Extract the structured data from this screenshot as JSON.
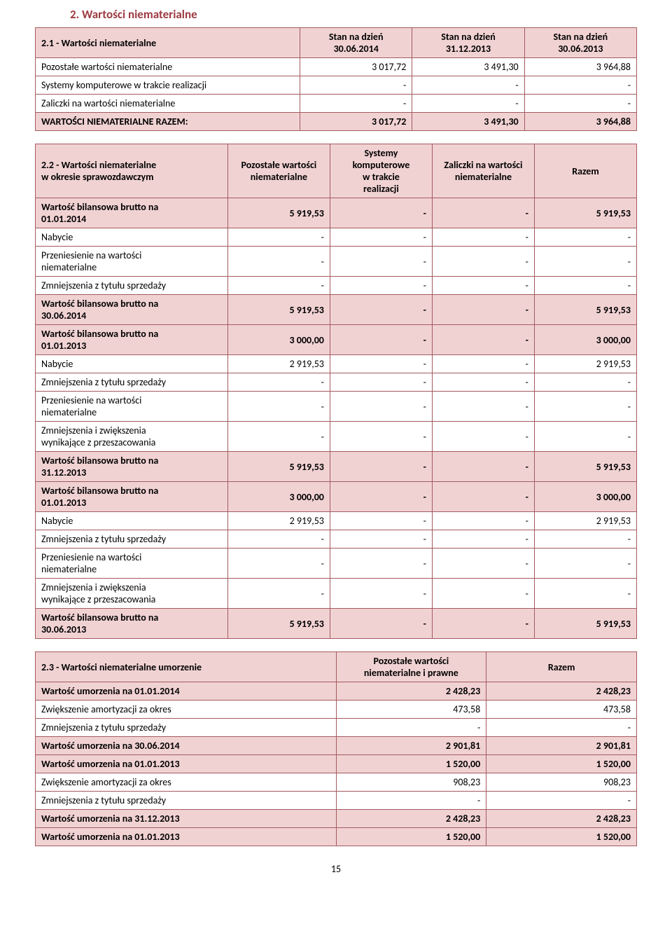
{
  "section_title": "2. Wartości niematerialne",
  "page_number": "15",
  "table1": {
    "header": {
      "label": "2.1 - Wartości niematerialne",
      "col1_l1": "Stan na dzień",
      "col1_l2": "30.06.2014",
      "col2_l1": "Stan na dzień",
      "col2_l2": "31.12.2013",
      "col3_l1": "Stan na dzień",
      "col3_l2": "30.06.2013"
    },
    "r1": {
      "label": "Pozostałe wartości niematerialne",
      "v1": "3 017,72",
      "v2": "3 491,30",
      "v3": "3 964,88"
    },
    "r2": {
      "label": "Systemy komputerowe w trakcie realizacji",
      "v1": "-",
      "v2": "-",
      "v3": "-"
    },
    "r3": {
      "label": "Zaliczki na wartości niematerialne",
      "v1": "-",
      "v2": "-",
      "v3": "-"
    },
    "r4": {
      "label": "WARTOŚCI NIEMATERIALNE RAZEM:",
      "v1": "3 017,72",
      "v2": "3 491,30",
      "v3": "3 964,88"
    }
  },
  "table2": {
    "header": {
      "label_l1": "2.2 - Wartości niematerialne",
      "label_l2": "w okresie sprawozdawczym",
      "c1_l1": "Pozostałe wartości",
      "c1_l2": "niematerialne",
      "c2_l1": "Systemy",
      "c2_l2": "komputerowe",
      "c2_l3": "w trakcie",
      "c2_l4": "realizacji",
      "c3_l1": "Zaliczki na wartości",
      "c3_l2": "niematerialne",
      "c4": "Razem"
    },
    "rows": [
      {
        "label_l1": "Wartość bilansowa brutto na",
        "label_l2": "01.01.2014",
        "v1": "5 919,53",
        "v2": "-",
        "v3": "-",
        "v4": "5 919,53",
        "bold": true,
        "shade": true
      },
      {
        "label_l1": "Nabycie",
        "v1": "-",
        "v2": "-",
        "v3": "-",
        "v4": "-"
      },
      {
        "label_l1": "Przeniesienie na wartości",
        "label_l2": "niematerialne",
        "v1": "-",
        "v2": "-",
        "v3": "-",
        "v4": "-"
      },
      {
        "label_l1": "Zmniejszenia z tytułu sprzedaży",
        "v1": "-",
        "v2": "-",
        "v3": "-",
        "v4": "-"
      },
      {
        "label_l1": "Wartość bilansowa brutto na",
        "label_l2": "30.06.2014",
        "v1": "5 919,53",
        "v2": "-",
        "v3": "-",
        "v4": "5 919,53",
        "bold": true,
        "shade": true
      },
      {
        "label_l1": "Wartość bilansowa brutto na",
        "label_l2": "01.01.2013",
        "v1": "3 000,00",
        "v2": "-",
        "v3": "-",
        "v4": "3 000,00",
        "bold": true,
        "shade": true
      },
      {
        "label_l1": "Nabycie",
        "v1": "2 919,53",
        "v2": "-",
        "v3": "-",
        "v4": "2 919,53"
      },
      {
        "label_l1": "Zmniejszenia z tytułu sprzedaży",
        "v1": "-",
        "v2": "-",
        "v3": "-",
        "v4": "-"
      },
      {
        "label_l1": "Przeniesienie na wartości",
        "label_l2": "niematerialne",
        "v1": "-",
        "v2": "-",
        "v3": "-",
        "v4": "-"
      },
      {
        "label_l1": "Zmniejszenia i zwiększenia",
        "label_l2": "wynikające z przeszacowania",
        "v1": "-",
        "v2": "-",
        "v3": "-",
        "v4": "-"
      },
      {
        "label_l1": "Wartość bilansowa brutto na",
        "label_l2": "31.12.2013",
        "v1": "5 919,53",
        "v2": "-",
        "v3": "-",
        "v4": "5 919,53",
        "bold": true,
        "shade": true
      },
      {
        "label_l1": "Wartość bilansowa brutto na",
        "label_l2": "01.01.2013",
        "v1": "3 000,00",
        "v2": "-",
        "v3": "-",
        "v4": "3 000,00",
        "bold": true,
        "shade": true
      },
      {
        "label_l1": "Nabycie",
        "v1": "2 919,53",
        "v2": "-",
        "v3": "-",
        "v4": "2 919,53"
      },
      {
        "label_l1": "Zmniejszenia z tytułu sprzedaży",
        "v1": "-",
        "v2": "-",
        "v3": "-",
        "v4": "-"
      },
      {
        "label_l1": "Przeniesienie na wartości",
        "label_l2": "niematerialne",
        "v1": "-",
        "v2": "-",
        "v3": "-",
        "v4": "-"
      },
      {
        "label_l1": "Zmniejszenia i zwiększenia",
        "label_l2": "wynikające z przeszacowania",
        "v1": "-",
        "v2": "-",
        "v3": "-",
        "v4": "-"
      },
      {
        "label_l1": "Wartość bilansowa brutto na",
        "label_l2": "30.06.2013",
        "v1": "5 919,53",
        "v2": "-",
        "v3": "-",
        "v4": "5 919,53",
        "bold": true,
        "shade": true
      }
    ]
  },
  "table3": {
    "header": {
      "label": "2.3 - Wartości niematerialne umorzenie",
      "c1_l1": "Pozostałe wartości",
      "c1_l2": "niematerialne i prawne",
      "c2": "Razem"
    },
    "rows": [
      {
        "label": "Wartość umorzenia na 01.01.2014",
        "v1": "2 428,23",
        "v2": "2 428,23",
        "bold": true,
        "shade": true
      },
      {
        "label": "Zwiększenie amortyzacji za okres",
        "v1": "473,58",
        "v2": "473,58"
      },
      {
        "label": "Zmniejszenia z tytułu sprzedaży",
        "v1": "-",
        "v2": "-"
      },
      {
        "label": "Wartość umorzenia na 30.06.2014",
        "v1": "2 901,81",
        "v2": "2 901,81",
        "bold": true,
        "shade": true
      },
      {
        "label": "Wartość umorzenia na 01.01.2013",
        "v1": "1 520,00",
        "v2": "1 520,00",
        "bold": true,
        "shade": true
      },
      {
        "label": "Zwiększenie amortyzacji za okres",
        "v1": "908,23",
        "v2": "908,23"
      },
      {
        "label": "Zmniejszenia z tytułu sprzedaży",
        "v1": "-",
        "v2": "-"
      },
      {
        "label": "Wartość umorzenia na 31.12.2013",
        "v1": "2 428,23",
        "v2": "2 428,23",
        "bold": true,
        "shade": true
      },
      {
        "label": "Wartość umorzenia na 01.01.2013",
        "v1": "1 520,00",
        "v2": "1 520,00",
        "bold": true,
        "shade": true
      }
    ]
  }
}
